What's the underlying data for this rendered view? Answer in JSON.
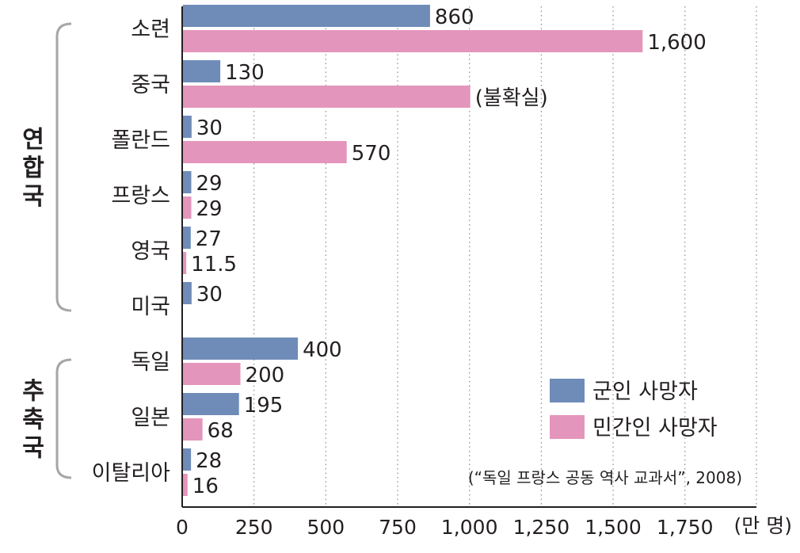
{
  "chart_data": {
    "type": "bar",
    "orientation": "horizontal",
    "categories": [
      "소련",
      "중국",
      "폴란드",
      "프랑스",
      "영국",
      "미국",
      "독일",
      "일본",
      "이탈리아"
    ],
    "groups": [
      {
        "label": "연합국",
        "categories": [
          "소련",
          "중국",
          "폴란드",
          "프랑스",
          "영국",
          "미국"
        ]
      },
      {
        "label": "추축국",
        "categories": [
          "독일",
          "일본",
          "이탈리아"
        ]
      }
    ],
    "series": [
      {
        "name": "군인 사망자",
        "color": "#6f8cb8",
        "values": [
          860,
          130,
          30,
          29,
          27,
          30,
          400,
          195,
          28
        ],
        "labels": [
          "860",
          "130",
          "30",
          "29",
          "27",
          "30",
          "400",
          "195",
          "28"
        ]
      },
      {
        "name": "민간인 사망자",
        "color": "#e495bb",
        "values": [
          1600,
          1000,
          570,
          29,
          11.5,
          null,
          200,
          68,
          16
        ],
        "labels": [
          "1,600",
          "(불확실)",
          "570",
          "29",
          "11.5",
          "",
          "200",
          "68",
          "16"
        ]
      }
    ],
    "x_ticks": [
      0,
      250,
      500,
      750,
      1000,
      1250,
      1500,
      1750
    ],
    "x_tick_labels": [
      "0",
      "250",
      "500",
      "750",
      "1,000",
      "1,250",
      "1,500",
      "1,750"
    ],
    "xlim": [
      0,
      1750
    ],
    "unit": "(만 명)",
    "grid": "vertical dotted",
    "legend_position": "bottom-right",
    "source": "(“독일 프랑스 공동 역사 교과서”, 2008)"
  }
}
